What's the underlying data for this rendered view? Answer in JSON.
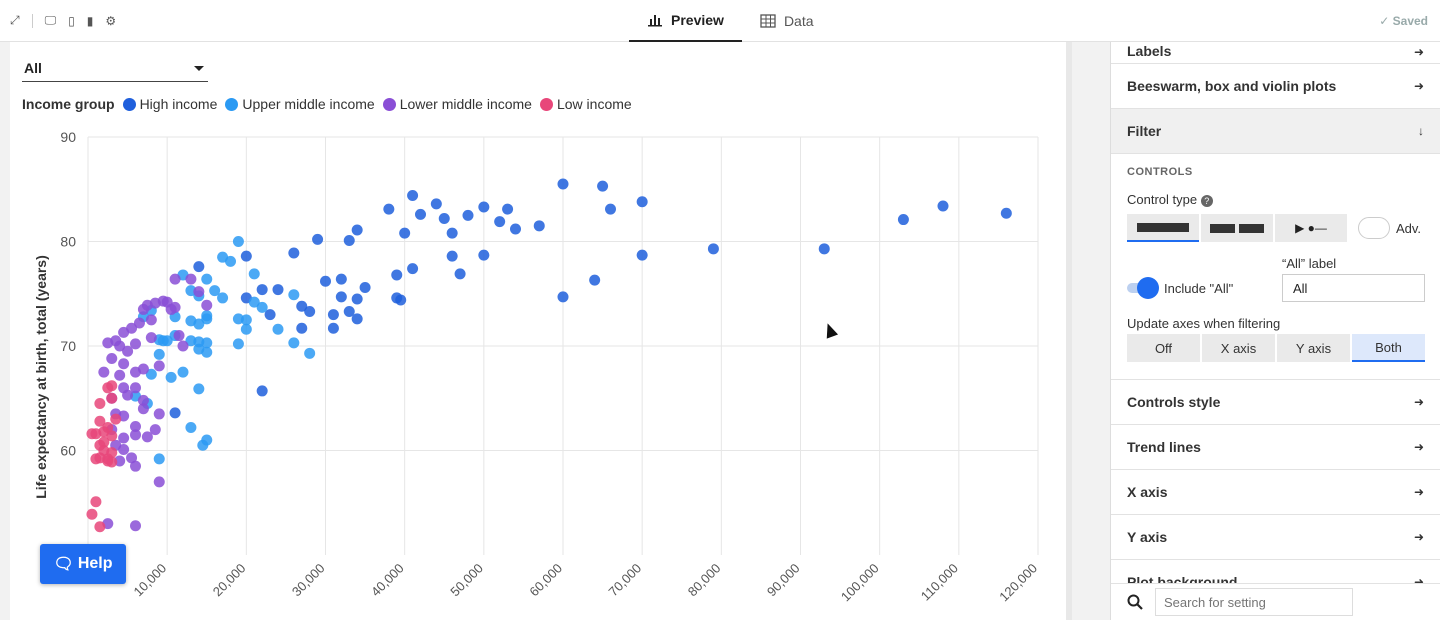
{
  "topbar": {
    "tabs": [
      {
        "label": "Preview",
        "icon": "bar-chart-icon"
      },
      {
        "label": "Data",
        "icon": "table-icon"
      }
    ],
    "saved_label": "✓ Saved"
  },
  "filter_dropdown": {
    "value": "All"
  },
  "legend": {
    "title": "Income group",
    "items": [
      {
        "label": "High income",
        "color": "#1f5fdc"
      },
      {
        "label": "Upper middle income",
        "color": "#2b9af3"
      },
      {
        "label": "Lower middle income",
        "color": "#8a4fd6"
      },
      {
        "label": "Low income",
        "color": "#e8477a"
      }
    ]
  },
  "help_button": {
    "label": "Help"
  },
  "sidebar": {
    "labels_row": "Labels",
    "beeswarm_row": "Beeswarm, box and violin plots",
    "filter_row": "Filter",
    "controls_heading": "CONTROLS",
    "control_type_label": "Control type",
    "adv_label": "Adv.",
    "all_label_caption": "“All” label",
    "include_all_label": "Include \"All\"",
    "all_label_value": "All",
    "update_axes_label": "Update axes when filtering",
    "update_axes_options": [
      "Off",
      "X axis",
      "Y axis",
      "Both"
    ],
    "update_axes_selected": "Both",
    "rows_after": [
      "Controls style",
      "Trend lines",
      "X axis",
      "Y axis",
      "Plot background"
    ],
    "search_placeholder": "Search for setting"
  },
  "chart_data": {
    "type": "scatter",
    "title": "",
    "xlabel": "",
    "ylabel": "Life expectancy at birth, total (years)",
    "xlim": [
      0,
      120000
    ],
    "ylim": [
      50,
      90
    ],
    "x_ticks": [
      10000,
      20000,
      30000,
      40000,
      50000,
      60000,
      70000,
      80000,
      90000,
      100000,
      110000,
      120000
    ],
    "x_tick_labels": [
      "10,000",
      "20,000",
      "30,000",
      "40,000",
      "50,000",
      "60,000",
      "70,000",
      "80,000",
      "90,000",
      "100,000",
      "110,000",
      "120,000"
    ],
    "y_ticks": [
      60,
      70,
      80,
      90
    ],
    "y_tick_labels": [
      "60",
      "70",
      "80",
      "90"
    ],
    "grid": true,
    "series": [
      {
        "name": "High income",
        "color": "#1f5fdc",
        "points": [
          [
            60000,
            85.5
          ],
          [
            65000,
            85.3
          ],
          [
            70000,
            83.8
          ],
          [
            66000,
            83.1
          ],
          [
            41000,
            84.4
          ],
          [
            38000,
            83.1
          ],
          [
            44000,
            83.6
          ],
          [
            50000,
            83.3
          ],
          [
            53000,
            83.1
          ],
          [
            57000,
            81.5
          ],
          [
            48000,
            82.5
          ],
          [
            42000,
            82.6
          ],
          [
            45000,
            82.2
          ],
          [
            52000,
            81.9
          ],
          [
            54000,
            81.2
          ],
          [
            46000,
            80.8
          ],
          [
            40000,
            80.8
          ],
          [
            34000,
            81.1
          ],
          [
            29000,
            80.2
          ],
          [
            33000,
            80.1
          ],
          [
            26000,
            78.9
          ],
          [
            20000,
            78.6
          ],
          [
            50000,
            78.7
          ],
          [
            46000,
            78.6
          ],
          [
            70000,
            78.7
          ],
          [
            79000,
            79.3
          ],
          [
            93000,
            79.3
          ],
          [
            103000,
            82.1
          ],
          [
            108000,
            83.4
          ],
          [
            116000,
            82.7
          ],
          [
            39000,
            76.8
          ],
          [
            41000,
            77.4
          ],
          [
            47000,
            76.9
          ],
          [
            64000,
            76.3
          ],
          [
            60000,
            74.7
          ],
          [
            30000,
            76.2
          ],
          [
            32000,
            76.4
          ],
          [
            35000,
            75.6
          ],
          [
            39000,
            74.6
          ],
          [
            22000,
            75.4
          ],
          [
            24000,
            75.4
          ],
          [
            27000,
            73.8
          ],
          [
            32000,
            74.7
          ],
          [
            34000,
            74.5
          ],
          [
            28000,
            73.3
          ],
          [
            31000,
            73.0
          ],
          [
            33000,
            73.3
          ],
          [
            34000,
            72.6
          ],
          [
            23000,
            73.0
          ],
          [
            27000,
            71.7
          ],
          [
            31000,
            71.7
          ],
          [
            20000,
            74.6
          ],
          [
            14000,
            77.6
          ],
          [
            11000,
            63.6
          ],
          [
            22000,
            65.7
          ],
          [
            39500,
            74.4
          ]
        ]
      },
      {
        "name": "Upper middle income",
        "color": "#2b9af3",
        "points": [
          [
            19000,
            80.0
          ],
          [
            17000,
            78.5
          ],
          [
            18000,
            78.1
          ],
          [
            21000,
            76.9
          ],
          [
            12000,
            76.8
          ],
          [
            13000,
            75.3
          ],
          [
            15000,
            76.4
          ],
          [
            16000,
            75.3
          ],
          [
            17000,
            74.6
          ],
          [
            14000,
            74.8
          ],
          [
            21000,
            74.2
          ],
          [
            26000,
            74.9
          ],
          [
            19000,
            72.6
          ],
          [
            20000,
            72.5
          ],
          [
            22000,
            73.7
          ],
          [
            11000,
            72.8
          ],
          [
            13000,
            72.4
          ],
          [
            15000,
            72.6
          ],
          [
            15000,
            72.9
          ],
          [
            14000,
            72.1
          ],
          [
            20000,
            71.6
          ],
          [
            24000,
            71.6
          ],
          [
            11000,
            71.0
          ],
          [
            13000,
            70.5
          ],
          [
            9000,
            70.6
          ],
          [
            9500,
            70.5
          ],
          [
            10000,
            70.5
          ],
          [
            14000,
            69.7
          ],
          [
            15000,
            69.4
          ],
          [
            9000,
            69.2
          ],
          [
            14000,
            70.4
          ],
          [
            15000,
            70.3
          ],
          [
            19000,
            70.2
          ],
          [
            26000,
            70.3
          ],
          [
            28000,
            69.3
          ],
          [
            10500,
            67.0
          ],
          [
            12000,
            67.5
          ],
          [
            8000,
            67.3
          ],
          [
            14000,
            65.9
          ],
          [
            6000,
            65.2
          ],
          [
            7500,
            64.5
          ],
          [
            13000,
            62.2
          ],
          [
            15000,
            61.0
          ],
          [
            14500,
            60.5
          ],
          [
            9000,
            59.2
          ],
          [
            8000,
            73.4
          ],
          [
            7000,
            72.8
          ]
        ]
      },
      {
        "name": "Lower middle income",
        "color": "#8a4fd6",
        "points": [
          [
            7500,
            73.9
          ],
          [
            7000,
            73.5
          ],
          [
            8500,
            74.1
          ],
          [
            10000,
            74.2
          ],
          [
            11000,
            73.7
          ],
          [
            10500,
            73.5
          ],
          [
            8000,
            72.5
          ],
          [
            6500,
            72.2
          ],
          [
            5500,
            71.7
          ],
          [
            4500,
            71.3
          ],
          [
            3500,
            70.5
          ],
          [
            2500,
            70.3
          ],
          [
            4000,
            70.0
          ],
          [
            6000,
            70.2
          ],
          [
            8000,
            70.8
          ],
          [
            11500,
            71.0
          ],
          [
            12000,
            70.0
          ],
          [
            5000,
            69.5
          ],
          [
            3000,
            68.8
          ],
          [
            4500,
            68.3
          ],
          [
            7000,
            67.8
          ],
          [
            9000,
            68.1
          ],
          [
            6000,
            67.5
          ],
          [
            4000,
            67.2
          ],
          [
            2000,
            67.5
          ],
          [
            4500,
            66.0
          ],
          [
            6000,
            66.0
          ],
          [
            3000,
            65.0
          ],
          [
            5000,
            65.3
          ],
          [
            7000,
            64.8
          ],
          [
            3500,
            63.5
          ],
          [
            7000,
            64.0
          ],
          [
            9000,
            63.5
          ],
          [
            4500,
            63.3
          ],
          [
            6000,
            62.3
          ],
          [
            8500,
            62.0
          ],
          [
            3000,
            62.0
          ],
          [
            4500,
            61.2
          ],
          [
            6000,
            61.5
          ],
          [
            7500,
            61.3
          ],
          [
            3500,
            60.5
          ],
          [
            4500,
            60.1
          ],
          [
            5500,
            59.3
          ],
          [
            4000,
            59.0
          ],
          [
            6000,
            58.5
          ],
          [
            9000,
            57.0
          ],
          [
            2500,
            53.0
          ],
          [
            6000,
            52.8
          ],
          [
            13000,
            76.4
          ],
          [
            14000,
            75.2
          ],
          [
            9500,
            74.3
          ],
          [
            11000,
            76.4
          ],
          [
            15000,
            73.9
          ]
        ]
      },
      {
        "name": "Low income",
        "color": "#e8477a",
        "points": [
          [
            2500,
            66.0
          ],
          [
            3000,
            66.2
          ],
          [
            1500,
            64.5
          ],
          [
            3000,
            65.0
          ],
          [
            3500,
            63.0
          ],
          [
            1500,
            62.8
          ],
          [
            2500,
            62.2
          ],
          [
            2000,
            61.8
          ],
          [
            500,
            61.6
          ],
          [
            1000,
            61.6
          ],
          [
            3000,
            61.4
          ],
          [
            2000,
            60.8
          ],
          [
            1500,
            60.5
          ],
          [
            2000,
            60.0
          ],
          [
            3000,
            59.8
          ],
          [
            1500,
            59.3
          ],
          [
            2500,
            59.2
          ],
          [
            1000,
            59.2
          ],
          [
            2500,
            59.0
          ],
          [
            3000,
            58.9
          ],
          [
            1000,
            55.1
          ],
          [
            500,
            53.9
          ],
          [
            1500,
            52.7
          ]
        ]
      }
    ]
  }
}
